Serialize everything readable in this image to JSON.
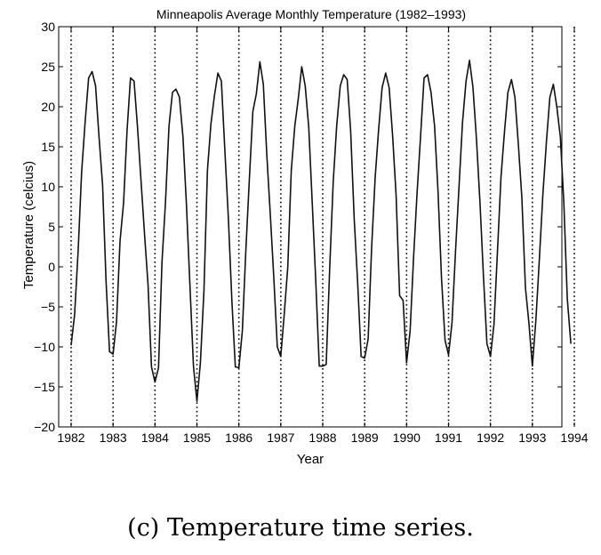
{
  "chart_data": {
    "type": "line",
    "title": "Minneapolis Average Monthly Temperature (1982–1993)",
    "xlabel": "Year",
    "ylabel": "Temperature (celcius)",
    "xlim": [
      1982,
      1994
    ],
    "ylim": [
      -20,
      30
    ],
    "x_ticks": [
      "1982",
      "1983",
      "1984",
      "1985",
      "1986",
      "1987",
      "1988",
      "1989",
      "1990",
      "1991",
      "1992",
      "1993",
      "1994"
    ],
    "y_ticks": [
      "−20",
      "−15",
      "−10",
      "−5",
      "0",
      "5",
      "10",
      "15",
      "20",
      "25",
      "30"
    ],
    "vertical_dotted_lines_at_years": [
      1982,
      1983,
      1984,
      1985,
      1986,
      1987,
      1988,
      1989,
      1990,
      1991,
      1992,
      1993,
      1994
    ],
    "grid": false,
    "series": [
      {
        "values": [
          -9.8,
          -6.0,
          2.0,
          11.8,
          18.0,
          23.6,
          24.4,
          22.6,
          16.2,
          10.2,
          -1.8,
          -10.6,
          -10.9,
          -6.8,
          3.2,
          8.0,
          17.0,
          23.6,
          23.2,
          17.4,
          10.8,
          4.2,
          -2.2,
          -12.5,
          -14.4,
          -12.6,
          0.6,
          8.0,
          17.6,
          21.8,
          22.2,
          21.2,
          16.2,
          7.8,
          -2.2,
          -12.4,
          -16.8,
          -12.0,
          -3.0,
          12.0,
          17.8,
          21.4,
          24.2,
          23.2,
          14.6,
          6.0,
          -4.2,
          -12.5,
          -12.6,
          -8.0,
          2.0,
          11.0,
          19.4,
          21.6,
          25.6,
          22.8,
          14.0,
          6.6,
          -1.4,
          -10.0,
          -11.2,
          -5.8,
          0.0,
          12.0,
          17.6,
          21.0,
          25.0,
          22.6,
          17.4,
          8.0,
          -1.6,
          -12.4,
          -12.4,
          -12.2,
          0.0,
          10.6,
          17.6,
          22.6,
          24.0,
          23.4,
          17.0,
          6.0,
          -2.0,
          -11.2,
          -11.4,
          -9.0,
          2.4,
          11.2,
          17.2,
          22.4,
          24.2,
          22.4,
          16.4,
          9.0,
          -3.6,
          -4.2,
          -12.0,
          -8.0,
          1.2,
          9.2,
          16.4,
          23.6,
          24.0,
          21.8,
          17.6,
          9.4,
          -1.4,
          -9.2,
          -11.0,
          -7.0,
          2.0,
          10.0,
          18.0,
          23.2,
          25.8,
          22.4,
          16.0,
          8.0,
          -1.2,
          -9.6,
          -11.2,
          -7.2,
          1.8,
          11.2,
          16.8,
          21.8,
          23.4,
          21.2,
          15.2,
          8.6,
          -2.6,
          -7.0,
          -12.4,
          -6.6,
          1.0,
          9.0,
          15.6,
          21.2,
          22.8,
          20.0,
          16.2,
          8.0,
          -4.0,
          -9.6
        ]
      }
    ]
  },
  "caption": "(c) Temperature time series."
}
